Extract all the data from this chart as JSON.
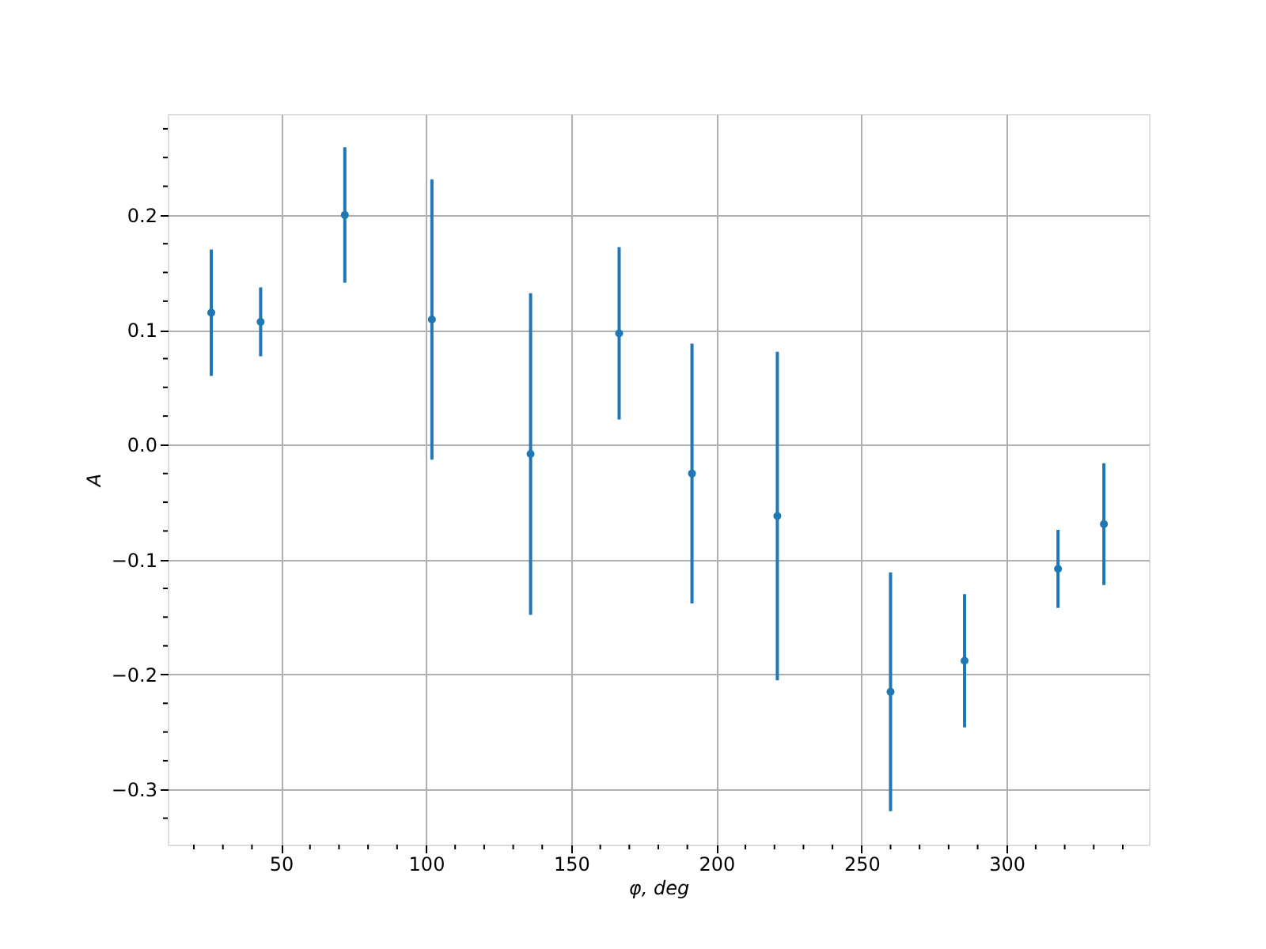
{
  "chart_data": {
    "type": "scatter",
    "xlabel": "φ, deg",
    "ylabel": "A",
    "x": [
      26,
      43,
      72,
      102,
      136,
      166.5,
      191.6,
      221,
      260,
      285.5,
      317.7,
      333.5
    ],
    "series": [
      {
        "color": "#1f77b4",
        "values": [
          0.115,
          0.107,
          0.2,
          0.109,
          -0.008,
          0.097,
          -0.025,
          -0.062,
          -0.215,
          -0.188,
          -0.108,
          -0.069
        ],
        "errors": [
          0.055,
          0.03,
          0.059,
          0.122,
          0.14,
          0.075,
          0.113,
          0.143,
          0.104,
          0.058,
          0.034,
          0.053
        ]
      }
    ],
    "marker": "circle",
    "grid": true,
    "xlim": [
      11,
      349
    ],
    "ylim": [
      -0.348,
      0.288
    ],
    "xticks": [
      {
        "value": 20,
        "label": null
      },
      {
        "value": 30,
        "label": null
      },
      {
        "value": 40,
        "label": null
      },
      50,
      {
        "value": 60,
        "label": null
      },
      {
        "value": 70,
        "label": null
      },
      {
        "value": 80,
        "label": null
      },
      {
        "value": 90,
        "label": null
      },
      100,
      {
        "value": 110,
        "label": null
      },
      {
        "value": 120,
        "label": null
      },
      {
        "value": 130,
        "label": null
      },
      {
        "value": 140,
        "label": null
      },
      150,
      {
        "value": 160,
        "label": null
      },
      {
        "value": 170,
        "label": null
      },
      {
        "value": 180,
        "label": null
      },
      {
        "value": 190,
        "label": null
      },
      200,
      {
        "value": 210,
        "label": null
      },
      {
        "value": 220,
        "label": null
      },
      {
        "value": 230,
        "label": null
      },
      {
        "value": 240,
        "label": null
      },
      250,
      {
        "value": 260,
        "label": null
      },
      {
        "value": 270,
        "label": null
      },
      {
        "value": 280,
        "label": null
      },
      {
        "value": 290,
        "label": null
      },
      300,
      {
        "value": 310,
        "label": null
      },
      {
        "value": 320,
        "label": null
      },
      {
        "value": 330,
        "label": null
      },
      {
        "value": 340,
        "label": null
      }
    ],
    "yticks": [
      {
        "value": -0.325,
        "label": null
      },
      {
        "value": -0.3,
        "label": "−0.3"
      },
      {
        "value": -0.275,
        "label": null
      },
      {
        "value": -0.25,
        "label": null
      },
      {
        "value": -0.225,
        "label": null
      },
      {
        "value": -0.2,
        "label": "−0.2"
      },
      {
        "value": -0.175,
        "label": null
      },
      {
        "value": -0.15,
        "label": null
      },
      {
        "value": -0.125,
        "label": null
      },
      {
        "value": -0.1,
        "label": "−0.1"
      },
      {
        "value": -0.075,
        "label": null
      },
      {
        "value": -0.05,
        "label": null
      },
      {
        "value": -0.025,
        "label": null
      },
      {
        "value": 0,
        "label": "0.0"
      },
      {
        "value": 0.025,
        "label": null
      },
      {
        "value": 0.05,
        "label": null
      },
      {
        "value": 0.075,
        "label": null
      },
      {
        "value": 0.1,
        "label": "0.1"
      },
      {
        "value": 0.125,
        "label": null
      },
      {
        "value": 0.15,
        "label": null
      },
      {
        "value": 0.175,
        "label": null
      },
      {
        "value": 0.2,
        "label": "0.2"
      },
      {
        "value": 0.225,
        "label": null
      },
      {
        "value": 0.25,
        "label": null
      },
      {
        "value": 0.275,
        "label": null
      }
    ]
  }
}
